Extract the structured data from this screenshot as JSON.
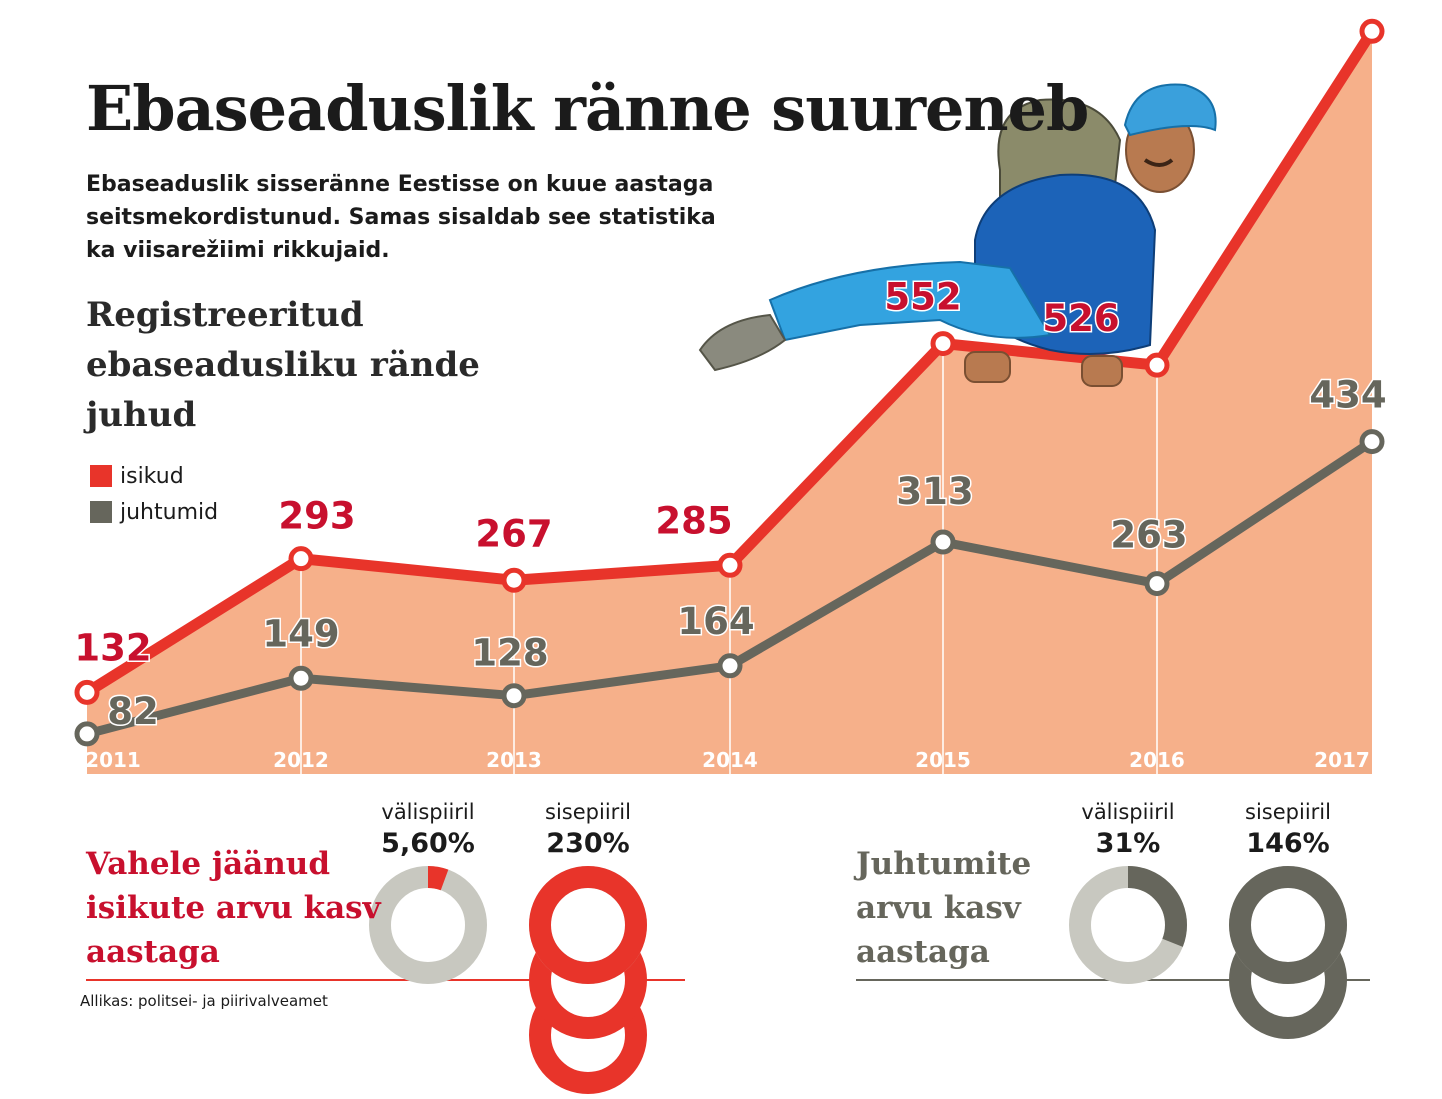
{
  "title": "Ebaseaduslik ränne suureneb",
  "subtitle": [
    "Ebaseaduslik sisseränne Eestisse on kuue aastaga",
    "seitsmekordistunud. Samas sisaldab see statistika",
    "ka viisarežiimi rikkujaid."
  ],
  "colors": {
    "isikud": "#e8342a",
    "juhtumid": "#66665c",
    "area": "#f6b08a",
    "isikud_label": "#c8102e",
    "ring_gray": "#c8c8c0"
  },
  "chart_data": {
    "type": "line",
    "title": [
      "Registreeritud",
      "ebaseadusliku rände",
      "juhud"
    ],
    "x": [
      "2011",
      "2012",
      "2013",
      "2014",
      "2015",
      "2016",
      "2017"
    ],
    "series": [
      {
        "name": "isikud",
        "values": [
          132,
          293,
          267,
          285,
          552,
          526,
          928
        ]
      },
      {
        "name": "juhtumid",
        "values": [
          82,
          149,
          128,
          164,
          313,
          263,
          434
        ]
      }
    ],
    "legend_position": "left",
    "grid": false
  },
  "illustration": "migrant-climbing-icon",
  "growth": {
    "isikud": {
      "heading": [
        "Vahele jäänud",
        "isikute arvu kasv",
        "aastaga"
      ],
      "items": [
        {
          "label": "välispiiril",
          "value": "5,60%",
          "percent": 5.6
        },
        {
          "label": "sisepiiril",
          "value": "230%",
          "percent": 230
        }
      ]
    },
    "juhtumid": {
      "heading": [
        "Juhtumite",
        "arvu kasv",
        "aastaga"
      ],
      "items": [
        {
          "label": "välispiiril",
          "value": "31%",
          "percent": 31
        },
        {
          "label": "sisepiiril",
          "value": "146%",
          "percent": 146
        }
      ]
    }
  },
  "source": "Allikas: politsei- ja piirivalveamet"
}
